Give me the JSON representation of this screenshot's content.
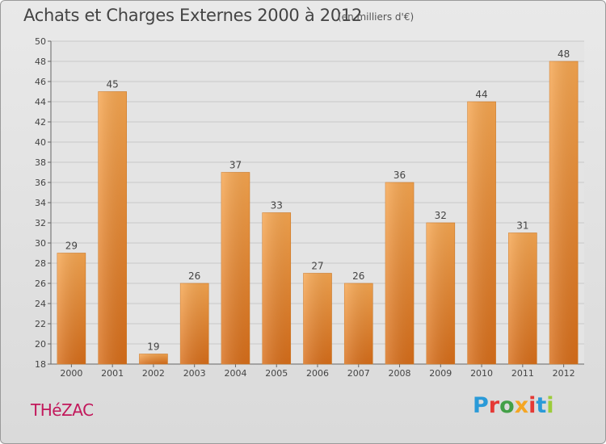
{
  "title": "Achats et Charges Externes 2000 à 2012",
  "unit_note": "(en milliers d'€)",
  "commune": "THéZAC",
  "logo": {
    "letters": [
      "P",
      "r",
      "o",
      "x",
      "i",
      "t",
      "i"
    ],
    "colors": [
      "#2a9ad8",
      "#e53935",
      "#43a047",
      "#f5a623",
      "#e53935",
      "#2a9ad8",
      "#9ccc3a"
    ]
  },
  "chart_data": {
    "type": "bar",
    "categories": [
      "2000",
      "2001",
      "2002",
      "2003",
      "2004",
      "2005",
      "2006",
      "2007",
      "2008",
      "2009",
      "2010",
      "2011",
      "2012"
    ],
    "values": [
      29,
      45,
      19,
      26,
      37,
      33,
      27,
      26,
      36,
      32,
      44,
      31,
      48
    ],
    "ylim": [
      18,
      50
    ],
    "yticks": [
      18,
      20,
      22,
      24,
      26,
      28,
      30,
      32,
      34,
      36,
      38,
      40,
      42,
      44,
      46,
      48,
      50
    ],
    "grid": true,
    "bar_color": "#e98a2b"
  }
}
